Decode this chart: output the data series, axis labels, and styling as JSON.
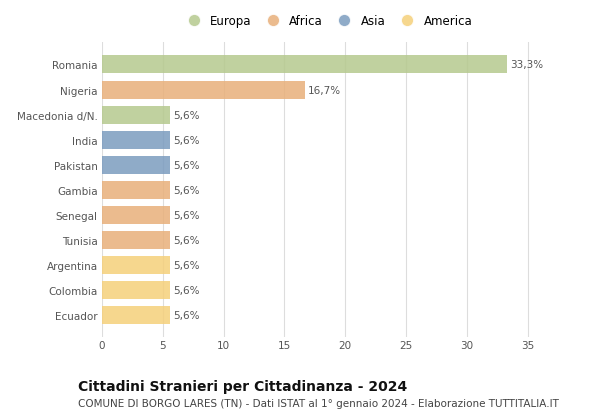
{
  "countries": [
    "Romania",
    "Nigeria",
    "Macedonia d/N.",
    "India",
    "Pakistan",
    "Gambia",
    "Senegal",
    "Tunisia",
    "Argentina",
    "Colombia",
    "Ecuador"
  ],
  "values": [
    33.3,
    16.7,
    5.6,
    5.6,
    5.6,
    5.6,
    5.6,
    5.6,
    5.6,
    5.6,
    5.6
  ],
  "labels": [
    "33,3%",
    "16,7%",
    "5,6%",
    "5,6%",
    "5,6%",
    "5,6%",
    "5,6%",
    "5,6%",
    "5,6%",
    "5,6%",
    "5,6%"
  ],
  "continents": [
    "Europa",
    "Africa",
    "Europa",
    "Asia",
    "Asia",
    "Africa",
    "Africa",
    "Africa",
    "America",
    "America",
    "America"
  ],
  "colors": {
    "Europa": "#b5c98e",
    "Africa": "#e8b07a",
    "Asia": "#7b9cbf",
    "America": "#f5d07a"
  },
  "legend_order": [
    "Europa",
    "Africa",
    "Asia",
    "America"
  ],
  "title": "Cittadini Stranieri per Cittadinanza - 2024",
  "subtitle": "COMUNE DI BORGO LARES (TN) - Dati ISTAT al 1° gennaio 2024 - Elaborazione TUTTITALIA.IT",
  "xlim": [
    0,
    37
  ],
  "xticks": [
    0,
    5,
    10,
    15,
    20,
    25,
    30,
    35
  ],
  "background_color": "#ffffff",
  "grid_color": "#dddddd",
  "title_fontsize": 10,
  "subtitle_fontsize": 7.5,
  "label_fontsize": 7.5,
  "tick_fontsize": 7.5,
  "legend_fontsize": 8.5,
  "bar_height": 0.72,
  "bar_alpha": 0.85
}
